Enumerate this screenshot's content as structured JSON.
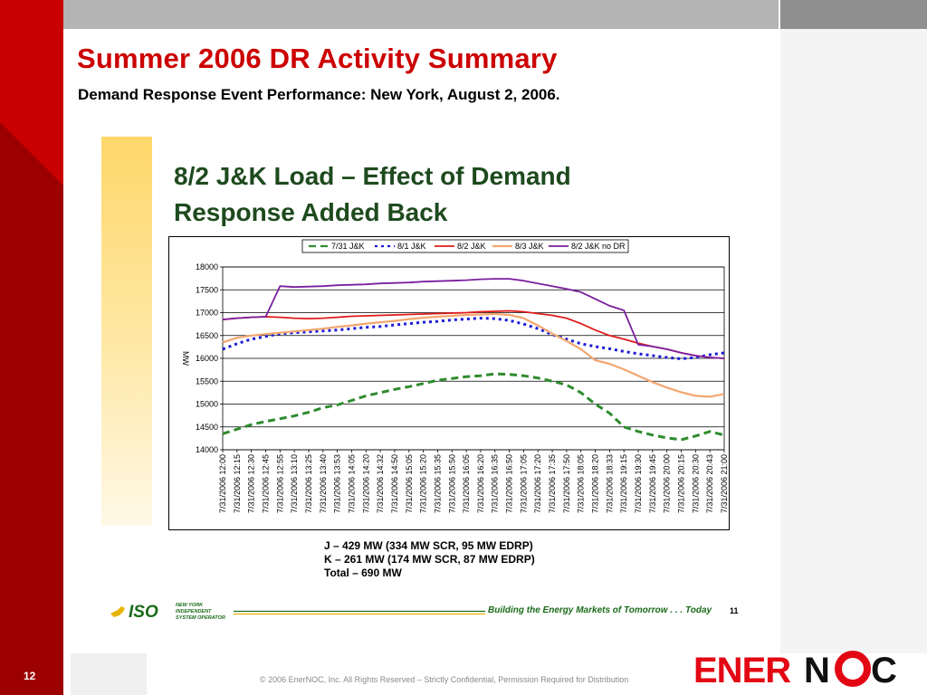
{
  "page": {
    "title": "Summer 2006 DR Activity Summary",
    "subtitle": "Demand Response Event Performance: New York, August 2, 2006.",
    "slide_number": "12",
    "copyright": "© 2006 EnerNOC, Inc. All Rights Reserved – Strictly Confidential, Permission Required for Distribution",
    "logo": {
      "prefix": "ENER",
      "suffix": "NC",
      "colors": {
        "prefix": "#e30613",
        "suffix": "#111111",
        "ring": "#e30613"
      }
    }
  },
  "embedded_slide": {
    "heading_line1": "8/2 J&K Load – Effect of Demand",
    "heading_line2": "Response Added Back",
    "notes": [
      "J – 429 MW (334 MW SCR, 95 MW EDRP)",
      "K – 261 MW (174 MW SCR, 87 MW EDRP)",
      "Total – 690 MW"
    ],
    "iso_logo": {
      "mark": "ISO",
      "text_lines": [
        "NEW YORK",
        "INDEPENDENT",
        "SYSTEM OPERATOR"
      ]
    },
    "slogan": "Building the Energy Markets of Tomorrow . . . Today",
    "page_number": "11"
  },
  "chart_data": {
    "type": "line",
    "title": "",
    "xlabel": "",
    "ylabel": "MW",
    "ylim": [
      14000,
      18000
    ],
    "yticks": [
      14000,
      14500,
      15000,
      15500,
      16000,
      16500,
      17000,
      17500,
      18000
    ],
    "grid": true,
    "legend_position": "top",
    "x": [
      "7/31/2006 12:00",
      "7/31/2006 12:15",
      "7/31/2006 12:30",
      "7/31/2006 12:45",
      "7/31/2006 12:55",
      "7/31/2006 13:10",
      "7/31/2006 13:25",
      "7/31/2006 13:40",
      "7/31/2006 13:53",
      "7/31/2006 14:05",
      "7/31/2006 14:20",
      "7/31/2006 14:32",
      "7/31/2006 14:50",
      "7/31/2006 15:05",
      "7/31/2006 15:20",
      "7/31/2006 15:35",
      "7/31/2006 15:50",
      "7/31/2006 16:05",
      "7/31/2006 16:20",
      "7/31/2006 16:35",
      "7/31/2006 16:50",
      "7/31/2006 17:05",
      "7/31/2006 17:20",
      "7/31/2006 17:35",
      "7/31/2006 17:50",
      "7/31/2006 18:05",
      "7/31/2006 18:20",
      "7/31/2006 18:33",
      "7/31/2006 19:15",
      "7/31/2006 19:30",
      "7/31/2006 19:45",
      "7/31/2006 20:00",
      "7/31/2006 20:15",
      "7/31/2006 20:30",
      "7/31/2006 20:43",
      "7/31/2006 21:00"
    ],
    "series": [
      {
        "name": "7/31 J&K",
        "color": "#2e8b2e",
        "dash": "8,5",
        "width": 3,
        "values": [
          14350,
          14450,
          14550,
          14620,
          14680,
          14740,
          14820,
          14920,
          14980,
          15080,
          15180,
          15250,
          15320,
          15380,
          15450,
          15520,
          15560,
          15600,
          15620,
          15660,
          15650,
          15620,
          15570,
          15500,
          15420,
          15250,
          15000,
          14800,
          14500,
          14400,
          14320,
          14260,
          14220,
          14300,
          14400,
          14320
        ]
      },
      {
        "name": "8/1 J&K",
        "color": "#1c1cd9",
        "dash": "3,4",
        "width": 3,
        "values": [
          16200,
          16320,
          16420,
          16480,
          16540,
          16560,
          16580,
          16600,
          16620,
          16650,
          16680,
          16700,
          16730,
          16760,
          16790,
          16810,
          16840,
          16860,
          16880,
          16870,
          16830,
          16750,
          16650,
          16520,
          16420,
          16320,
          16260,
          16210,
          16150,
          16100,
          16060,
          16020,
          15990,
          16020,
          16080,
          16120
        ]
      },
      {
        "name": "8/2 J&K",
        "color": "#e01b1b",
        "dash": "",
        "width": 1.8,
        "values": [
          16850,
          16880,
          16900,
          16910,
          16900,
          16880,
          16870,
          16880,
          16900,
          16920,
          16930,
          16940,
          16950,
          16960,
          16970,
          16980,
          16990,
          17000,
          17020,
          17030,
          17040,
          17020,
          16980,
          16940,
          16880,
          16760,
          16620,
          16500,
          16420,
          16330,
          16260,
          16200,
          16120,
          16060,
          16020,
          16000
        ]
      },
      {
        "name": "8/3 J&K",
        "color": "#f3a76f",
        "dash": "",
        "width": 2.2,
        "values": [
          16350,
          16450,
          16500,
          16530,
          16560,
          16590,
          16620,
          16650,
          16690,
          16720,
          16760,
          16790,
          16820,
          16860,
          16890,
          16910,
          16930,
          16950,
          16960,
          16970,
          16950,
          16880,
          16720,
          16540,
          16380,
          16200,
          15960,
          15880,
          15760,
          15620,
          15480,
          15360,
          15260,
          15180,
          15160,
          15220
        ]
      },
      {
        "name": "8/2 J&K no DR",
        "color": "#7a1f9e",
        "dash": "",
        "width": 1.8,
        "values": [
          16850,
          16880,
          16900,
          16910,
          17580,
          17560,
          17570,
          17580,
          17600,
          17610,
          17620,
          17640,
          17650,
          17660,
          17680,
          17690,
          17700,
          17710,
          17730,
          17740,
          17740,
          17700,
          17640,
          17580,
          17520,
          17450,
          17300,
          17150,
          17050,
          16300,
          16260,
          16200,
          16120,
          16060,
          16020,
          16000
        ]
      }
    ]
  }
}
